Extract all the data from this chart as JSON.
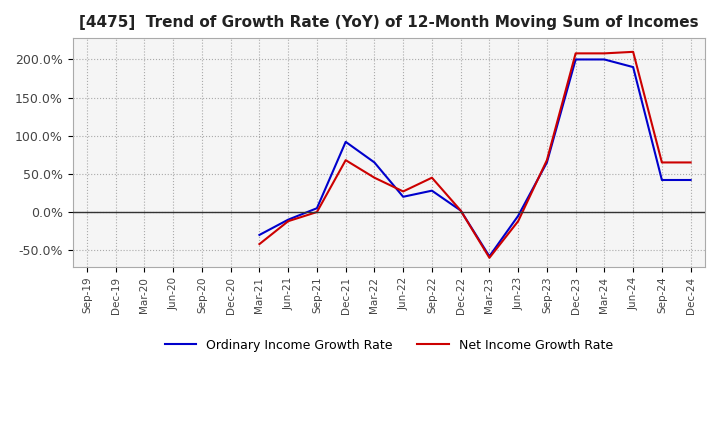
{
  "title": "[4475]  Trend of Growth Rate (YoY) of 12-Month Moving Sum of Incomes",
  "title_fontsize": 11,
  "background_color": "#ffffff",
  "plot_bg_color": "#f5f5f5",
  "grid_color": "#aaaaaa",
  "ordinary_color": "#0000cc",
  "net_color": "#cc0000",
  "legend_ordinary": "Ordinary Income Growth Rate",
  "legend_net": "Net Income Growth Rate",
  "x_labels": [
    "Sep-19",
    "Dec-19",
    "Mar-20",
    "Jun-20",
    "Sep-20",
    "Dec-20",
    "Mar-21",
    "Jun-21",
    "Sep-21",
    "Dec-21",
    "Mar-22",
    "Jun-22",
    "Sep-22",
    "Dec-22",
    "Mar-23",
    "Jun-23",
    "Sep-23",
    "Dec-23",
    "Mar-24",
    "Jun-24",
    "Sep-24",
    "Dec-24"
  ],
  "ordinary_data": [
    [
      "Sep-19",
      null
    ],
    [
      "Dec-19",
      null
    ],
    [
      "Mar-20",
      null
    ],
    [
      "Jun-20",
      null
    ],
    [
      "Sep-20",
      null
    ],
    [
      "Dec-20",
      null
    ],
    [
      "Mar-21",
      -0.3
    ],
    [
      "Jun-21",
      -0.1
    ],
    [
      "Sep-21",
      0.05
    ],
    [
      "Dec-21",
      0.92
    ],
    [
      "Mar-22",
      0.65
    ],
    [
      "Jun-22",
      0.2
    ],
    [
      "Sep-22",
      0.28
    ],
    [
      "Dec-22",
      0.02
    ],
    [
      "Mar-23",
      -0.58
    ],
    [
      "Jun-23",
      -0.05
    ],
    [
      "Sep-23",
      0.65
    ],
    [
      "Dec-23",
      2.0
    ],
    [
      "Mar-24",
      2.0
    ],
    [
      "Jun-24",
      1.9
    ],
    [
      "Sep-24",
      0.42
    ],
    [
      "Dec-24",
      0.42
    ]
  ],
  "net_data": [
    [
      "Sep-19",
      null
    ],
    [
      "Dec-19",
      null
    ],
    [
      "Mar-20",
      null
    ],
    [
      "Jun-20",
      null
    ],
    [
      "Sep-20",
      null
    ],
    [
      "Dec-20",
      null
    ],
    [
      "Mar-21",
      -0.42
    ],
    [
      "Jun-21",
      -0.12
    ],
    [
      "Sep-21",
      0.0
    ],
    [
      "Dec-21",
      0.68
    ],
    [
      "Mar-22",
      0.45
    ],
    [
      "Jun-22",
      0.27
    ],
    [
      "Sep-22",
      0.45
    ],
    [
      "Dec-22",
      0.02
    ],
    [
      "Mar-23",
      -0.6
    ],
    [
      "Jun-23",
      -0.12
    ],
    [
      "Sep-23",
      0.68
    ],
    [
      "Dec-23",
      2.08
    ],
    [
      "Mar-24",
      2.08
    ],
    [
      "Jun-24",
      2.1
    ],
    [
      "Sep-24",
      0.65
    ],
    [
      "Dec-24",
      0.65
    ]
  ],
  "yticks": [
    -0.5,
    0.0,
    0.5,
    1.0,
    1.5,
    2.0
  ],
  "ytick_labels": [
    "-50.0%",
    "0.0%",
    "50.0%",
    "100.0%",
    "150.0%",
    "200.0%"
  ],
  "ylim_low": -0.72,
  "ylim_high": 2.28
}
